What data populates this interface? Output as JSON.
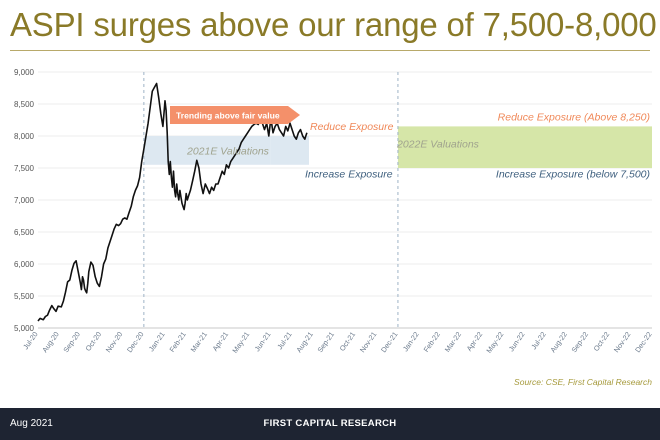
{
  "header": {
    "title": "ASPI surges above our range of 7,500-8,000"
  },
  "chart_data": {
    "type": "line",
    "y_ticks": [
      "5,000",
      "5,500",
      "6,000",
      "6,500",
      "7,000",
      "7,500",
      "8,000",
      "8,500",
      "9,000"
    ],
    "y_tick_values": [
      5000,
      5500,
      6000,
      6500,
      7000,
      7500,
      8000,
      8500,
      9000
    ],
    "ylim": [
      5000,
      9000
    ],
    "x_tick_labels": [
      "Jul-20",
      "Aug-20",
      "Sep-20",
      "Oct-20",
      "Nov-20",
      "Dec-20",
      "Jan-21",
      "Feb-21",
      "Mar-21",
      "Apr-21",
      "May-21",
      "Jun-21",
      "Jul-21",
      "Aug-21",
      "Sep-21",
      "Oct-21",
      "Nov-21",
      "Dec-21",
      "Jan-22",
      "Feb-22",
      "Mar-22",
      "Apr-22",
      "May-22",
      "Jun-22",
      "Jul-22",
      "Aug-22",
      "Sep-22",
      "Oct-22",
      "Nov-22",
      "Dec-22"
    ],
    "series": [
      {
        "name": "ASPI",
        "x_month_index": [
          0,
          0.1,
          0.25,
          0.35,
          0.45,
          0.55,
          0.65,
          0.75,
          0.85,
          0.95,
          1.1,
          1.2,
          1.3,
          1.4,
          1.5,
          1.6,
          1.7,
          1.8,
          1.9,
          2.0,
          2.05,
          2.1,
          2.15,
          2.2,
          2.25,
          2.3,
          2.35,
          2.4,
          2.5,
          2.6,
          2.7,
          2.8,
          2.9,
          3.0,
          3.1,
          3.2,
          3.3,
          3.4,
          3.5,
          3.6,
          3.7,
          3.8,
          3.9,
          4.0,
          4.1,
          4.2,
          4.3,
          4.4,
          4.5,
          4.6,
          4.7,
          4.8,
          4.9,
          5.0,
          5.1,
          5.2,
          5.3,
          5.4,
          5.5,
          5.6,
          5.7,
          5.8,
          5.9,
          6.0,
          6.05,
          6.1,
          6.15,
          6.2,
          6.25,
          6.3,
          6.35,
          6.4,
          6.45,
          6.5,
          6.55,
          6.6,
          6.65,
          6.7,
          6.75,
          6.8,
          6.85,
          6.9,
          6.95,
          7.0,
          7.05,
          7.1,
          7.2,
          7.3,
          7.4,
          7.5,
          7.6,
          7.7,
          7.8,
          7.9,
          8.0,
          8.1,
          8.2,
          8.3,
          8.4,
          8.5,
          8.6,
          8.7,
          8.8,
          8.9,
          9.0,
          9.1,
          9.2,
          9.3,
          9.4,
          9.5,
          9.6,
          9.7,
          9.8,
          9.9,
          10.0,
          10.1,
          10.2,
          10.3,
          10.4,
          10.5,
          10.6,
          10.7,
          10.8,
          10.9,
          11.0,
          11.1,
          11.2,
          11.3,
          11.4,
          11.5,
          11.6,
          11.7,
          11.8,
          11.9,
          12.0,
          12.1,
          12.2,
          12.3,
          12.4,
          12.5,
          12.6,
          12.65,
          12.7
        ],
        "values": [
          5110,
          5150,
          5130,
          5180,
          5200,
          5280,
          5350,
          5300,
          5260,
          5340,
          5330,
          5420,
          5560,
          5720,
          5750,
          5900,
          6010,
          6050,
          5880,
          5710,
          5600,
          5800,
          5750,
          5620,
          5580,
          5550,
          5700,
          5880,
          6030,
          5980,
          5800,
          5700,
          5650,
          5800,
          6000,
          6080,
          6250,
          6350,
          6450,
          6550,
          6620,
          6600,
          6630,
          6700,
          6720,
          6700,
          6800,
          6900,
          7050,
          7150,
          7220,
          7350,
          7600,
          7800,
          8000,
          8200,
          8450,
          8700,
          8760,
          8820,
          8600,
          8350,
          8150,
          8550,
          8400,
          8050,
          7600,
          7400,
          7600,
          7350,
          7200,
          7450,
          7150,
          7050,
          7250,
          7100,
          7000,
          7150,
          7050,
          6950,
          6900,
          6850,
          6950,
          7100,
          7000,
          7050,
          7150,
          7300,
          7450,
          7620,
          7500,
          7250,
          7100,
          7250,
          7180,
          7100,
          7200,
          7150,
          7250,
          7250,
          7350,
          7450,
          7400,
          7550,
          7500,
          7600,
          7650,
          7700,
          7750,
          7800,
          7900,
          7950,
          8000,
          8050,
          8100,
          8150,
          8180,
          8200,
          8180,
          8250,
          8200,
          8100,
          8200,
          8000,
          8280,
          8050,
          8150,
          8200,
          8100,
          8050,
          8000,
          8150,
          8080,
          8200,
          8100,
          8000,
          7950,
          8050,
          8100,
          8000,
          7950,
          8000,
          8050,
          7950,
          8350
        ]
      }
    ],
    "annotations": {
      "arrow_label": "Trending above fair value",
      "reduce_2021": "Reduce Exposure",
      "increase_2021": "Increase Exposure",
      "band_2021_label": "2021E Valuations",
      "band_2021_range": [
        7550,
        8000
      ],
      "reduce_2022": "Reduce Exposure (Above 8,250)",
      "increase_2022": "Increase Exposure (below 7,500)",
      "band_2022_label": "2022E Valuations",
      "band_2022_range": [
        7500,
        8150
      ],
      "source": "Source: CSE, First Capital Research"
    },
    "colors": {
      "line": "#111111",
      "band_2021": "#dde8f1",
      "band_2022": "#d6e6a8",
      "arrow": "#f4906a",
      "reduce_text": "#f08858",
      "increase_text": "#3e5f7e",
      "band_text": "#a0a38e",
      "divider": "#9eb3c7",
      "source_text": "#a69a3c"
    }
  },
  "footer": {
    "date": "Aug 2021",
    "brand": "FIRST CAPITAL RESEARCH"
  }
}
